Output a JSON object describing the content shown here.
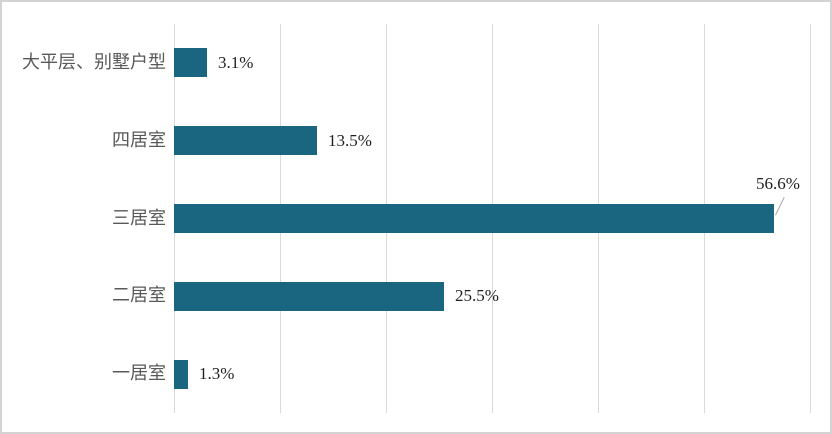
{
  "chart_data": {
    "type": "bar",
    "orientation": "horizontal",
    "title": "",
    "xlabel": "",
    "ylabel": "",
    "categories": [
      "大平层、别墅户型",
      "四居室",
      "三居室",
      "二居室",
      "一居室"
    ],
    "values": [
      3.1,
      13.5,
      56.6,
      25.5,
      1.3
    ],
    "points": [
      {
        "category": "大平层、别墅户型",
        "value": 3.1,
        "label": "3.1%",
        "label_placement": "right"
      },
      {
        "category": "四居室",
        "value": 13.5,
        "label": "13.5%",
        "label_placement": "right"
      },
      {
        "category": "三居室",
        "value": 56.6,
        "label": "56.6%",
        "label_placement": "above-end-with-leader"
      },
      {
        "category": "二居室",
        "value": 25.5,
        "label": "25.5%",
        "label_placement": "right"
      },
      {
        "category": "一居室",
        "value": 1.3,
        "label": "1.3%",
        "label_placement": "right"
      }
    ],
    "xlim": [
      0,
      60
    ],
    "gridline_step": 10,
    "grid": "vertical",
    "axis_tick_labels_visible": false,
    "legend": "none",
    "colors": {
      "bar": "#1a6580",
      "gridline": "#d9d9d9",
      "category_label": "#595959",
      "value_label": "#1f1f1f",
      "leader_line": "#a6a6a6",
      "background": "#ffffff",
      "frame_border": "#d3d3d3"
    }
  }
}
